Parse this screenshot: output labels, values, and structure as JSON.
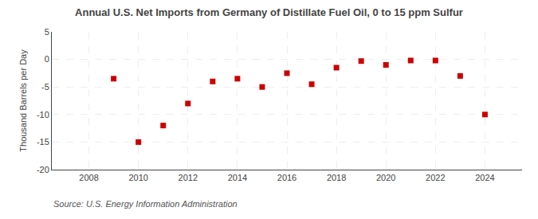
{
  "chart_data": {
    "type": "scatter",
    "title": "Annual U.S. Net Imports from Germany of Distillate Fuel Oil, 0 to 15 ppm Sulfur",
    "ylabel": "Thousand Barrels per Day",
    "annotations": [
      "Source: U.S. Energy Information Administration"
    ],
    "x": [
      2009,
      2010,
      2011,
      2012,
      2013,
      2014,
      2015,
      2016,
      2017,
      2018,
      2019,
      2020,
      2021,
      2022,
      2023,
      2024
    ],
    "values": [
      -3.5,
      -15.0,
      -12.0,
      -8.0,
      -4.0,
      -3.5,
      -5.0,
      -2.5,
      -4.5,
      -1.5,
      -0.3,
      -1.0,
      -0.2,
      -0.2,
      -3.0,
      -10.0
    ],
    "color": "#CC0000",
    "marker": "square",
    "xlim": [
      2006.5,
      2025.5
    ],
    "xticks": [
      2008,
      2010,
      2012,
      2014,
      2016,
      2018,
      2020,
      2022,
      2024
    ],
    "ylim": [
      -20,
      5
    ],
    "yticks": [
      -20,
      -15,
      -10,
      -5,
      0,
      5
    ],
    "grid": true
  }
}
